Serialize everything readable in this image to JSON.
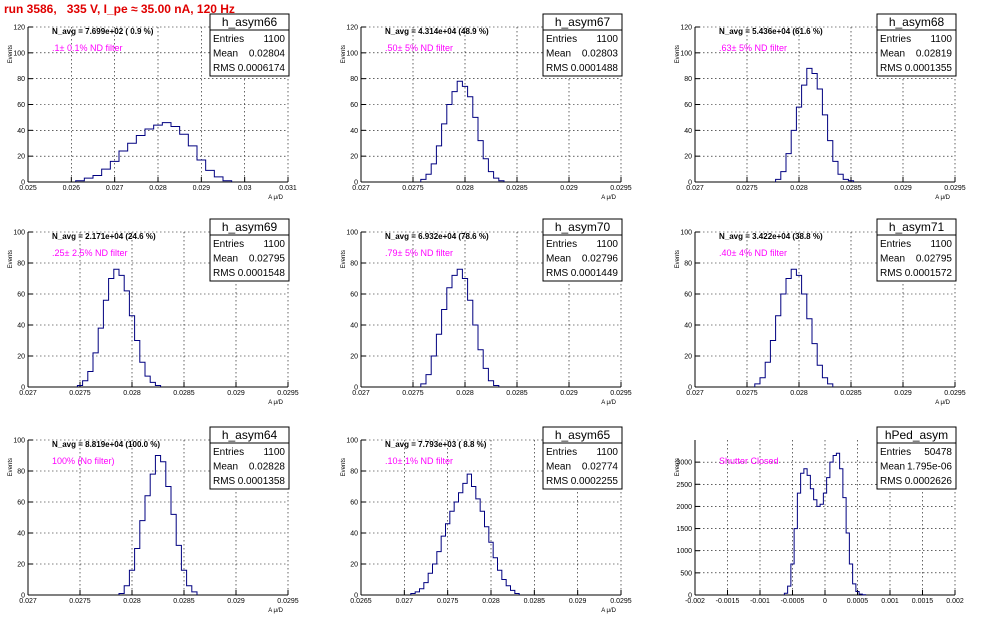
{
  "run_title": "run 3586,   335 V, I_pe ≈ 35.00 nA, 120 Hz",
  "chart_data": [
    {
      "type": "histogram",
      "name": "h_asym66",
      "navg": "N_avg = 7.699e+02 ( 0.9 %)",
      "filter": ".1± 0.1% ND filter",
      "xlim": [
        0.025,
        0.031
      ],
      "ylim": [
        0,
        120
      ],
      "xticks": [
        "0.025",
        "0.026",
        "0.027",
        "0.028",
        "0.029",
        "0.03",
        "0.031"
      ],
      "yticks": [
        "0",
        "20",
        "40",
        "60",
        "80",
        "100",
        "120"
      ],
      "xlabel": "A_{μ/D}",
      "ylabel": "Events",
      "stats": [
        [
          "Entries",
          "1100"
        ],
        [
          "Mean",
          "0.02804"
        ],
        [
          "RMS",
          "0.0006174"
        ]
      ],
      "x": [
        0.0262,
        0.0264,
        0.0266,
        0.0268,
        0.027,
        0.0272,
        0.0274,
        0.0276,
        0.0278,
        0.028,
        0.0282,
        0.0284,
        0.0286,
        0.0288,
        0.029,
        0.0292,
        0.0294,
        0.0296
      ],
      "y": [
        1,
        3,
        5,
        10,
        16,
        24,
        30,
        36,
        41,
        44,
        46,
        43,
        37,
        28,
        17,
        9,
        4,
        1
      ]
    },
    {
      "type": "histogram",
      "name": "h_asym67",
      "navg": "N_avg = 4.314e+04 (48.9 %)",
      "filter": ".50± 5% ND filter",
      "xlim": [
        0.027,
        0.0295
      ],
      "ylim": [
        0,
        120
      ],
      "xticks": [
        "0.027",
        "0.0275",
        "0.028",
        "0.0285",
        "0.029",
        "0.0295"
      ],
      "yticks": [
        "0",
        "20",
        "40",
        "60",
        "80",
        "100",
        "120"
      ],
      "xlabel": "A_{μ/D}",
      "ylabel": "Events",
      "stats": [
        [
          "Entries",
          "1100"
        ],
        [
          "Mean",
          "0.02803"
        ],
        [
          "RMS",
          "0.0001488"
        ]
      ],
      "x": [
        0.0276,
        0.02765,
        0.0277,
        0.02775,
        0.0278,
        0.02785,
        0.0279,
        0.02795,
        0.028,
        0.02805,
        0.0281,
        0.02815,
        0.0282,
        0.02825,
        0.0283,
        0.02835
      ],
      "y": [
        2,
        6,
        14,
        28,
        45,
        60,
        70,
        78,
        74,
        66,
        50,
        32,
        18,
        8,
        3,
        1
      ]
    },
    {
      "type": "histogram",
      "name": "h_asym68",
      "navg": "N_avg = 5.436e+04 (61.6 %)",
      "filter": ".63± 5% ND filter",
      "xlim": [
        0.027,
        0.0295
      ],
      "ylim": [
        0,
        120
      ],
      "xticks": [
        "0.027",
        "0.0275",
        "0.028",
        "0.0285",
        "0.029",
        "0.0295"
      ],
      "yticks": [
        "0",
        "20",
        "40",
        "60",
        "80",
        "100",
        "120"
      ],
      "xlabel": "A_{μ/D}",
      "ylabel": "Events",
      "stats": [
        [
          "Entries",
          "1100"
        ],
        [
          "Mean",
          "0.02819"
        ],
        [
          "RMS",
          "0.0001355"
        ]
      ],
      "x": [
        0.0278,
        0.02785,
        0.0279,
        0.02795,
        0.028,
        0.02805,
        0.0281,
        0.02815,
        0.0282,
        0.02825,
        0.0283,
        0.02835,
        0.0284,
        0.02845,
        0.0285
      ],
      "y": [
        2,
        8,
        22,
        40,
        58,
        75,
        88,
        84,
        72,
        52,
        32,
        16,
        6,
        2,
        1
      ]
    },
    {
      "type": "histogram",
      "name": "h_asym69",
      "navg": "N_avg = 2.171e+04 (24.6 %)",
      "filter": ".25± 2.5% ND filter",
      "xlim": [
        0.027,
        0.0295
      ],
      "ylim": [
        0,
        100
      ],
      "xticks": [
        "0.027",
        "0.0275",
        "0.028",
        "0.0285",
        "0.029",
        "0.0295"
      ],
      "yticks": [
        "0",
        "20",
        "40",
        "60",
        "80",
        "100"
      ],
      "xlabel": "A_{μ/D}",
      "ylabel": "Events",
      "stats": [
        [
          "Entries",
          "1100"
        ],
        [
          "Mean",
          "0.02795"
        ],
        [
          "RMS",
          "0.0001548"
        ]
      ],
      "x": [
        0.0275,
        0.02755,
        0.0276,
        0.02765,
        0.0277,
        0.02775,
        0.0278,
        0.02785,
        0.0279,
        0.02795,
        0.028,
        0.02805,
        0.0281,
        0.02815,
        0.0282,
        0.02825
      ],
      "y": [
        1,
        4,
        10,
        22,
        38,
        56,
        70,
        76,
        72,
        62,
        46,
        30,
        16,
        7,
        3,
        1
      ]
    },
    {
      "type": "histogram",
      "name": "h_asym70",
      "navg": "N_avg = 6.932e+04 (78.6 %)",
      "filter": ".79± 5% ND filter",
      "xlim": [
        0.027,
        0.0295
      ],
      "ylim": [
        0,
        100
      ],
      "xticks": [
        "0.027",
        "0.0275",
        "0.028",
        "0.0285",
        "0.029",
        "0.0295"
      ],
      "yticks": [
        "0",
        "20",
        "40",
        "60",
        "80",
        "100"
      ],
      "xlabel": "A_{μ/D}",
      "ylabel": "Events",
      "stats": [
        [
          "Entries",
          "1100"
        ],
        [
          "Mean",
          "0.02796"
        ],
        [
          "RMS",
          "0.0001449"
        ]
      ],
      "x": [
        0.0276,
        0.02765,
        0.0277,
        0.02775,
        0.0278,
        0.02785,
        0.0279,
        0.02795,
        0.028,
        0.02805,
        0.0281,
        0.02815,
        0.0282,
        0.02825,
        0.0283
      ],
      "y": [
        2,
        8,
        20,
        34,
        50,
        64,
        72,
        76,
        70,
        56,
        40,
        24,
        12,
        4,
        1
      ]
    },
    {
      "type": "histogram",
      "name": "h_asym71",
      "navg": "N_avg = 3.422e+04 (38.8 %)",
      "filter": ".40± 4% ND filter",
      "xlim": [
        0.027,
        0.0295
      ],
      "ylim": [
        0,
        100
      ],
      "xticks": [
        "0.027",
        "0.0275",
        "0.028",
        "0.0285",
        "0.029",
        "0.0295"
      ],
      "yticks": [
        "0",
        "20",
        "40",
        "60",
        "80",
        "100"
      ],
      "xlabel": "A_{μ/D}",
      "ylabel": "Events",
      "stats": [
        [
          "Entries",
          "1100"
        ],
        [
          "Mean",
          "0.02795"
        ],
        [
          "RMS",
          "0.0001572"
        ]
      ],
      "x": [
        0.0276,
        0.02765,
        0.0277,
        0.02775,
        0.0278,
        0.02785,
        0.0279,
        0.02795,
        0.028,
        0.02805,
        0.0281,
        0.02815,
        0.0282,
        0.02825,
        0.0283
      ],
      "y": [
        2,
        6,
        16,
        30,
        46,
        60,
        70,
        76,
        72,
        60,
        44,
        28,
        14,
        6,
        2
      ]
    },
    {
      "type": "histogram",
      "name": "h_asym64",
      "navg": "N_avg = 8.819e+04 (100.0 %)",
      "filter": "100% (No filter)",
      "xlim": [
        0.027,
        0.0295
      ],
      "ylim": [
        0,
        100
      ],
      "xticks": [
        "0.027",
        "0.0275",
        "0.028",
        "0.0285",
        "0.029",
        "0.0295"
      ],
      "yticks": [
        "0",
        "20",
        "40",
        "60",
        "80",
        "100"
      ],
      "xlabel": "A_{μ/D}",
      "ylabel": "Events",
      "stats": [
        [
          "Entries",
          "1100"
        ],
        [
          "Mean",
          "0.02828"
        ],
        [
          "RMS",
          "0.0001358"
        ]
      ],
      "x": [
        0.0279,
        0.02795,
        0.028,
        0.02805,
        0.0281,
        0.02815,
        0.0282,
        0.02825,
        0.0283,
        0.02835,
        0.0284,
        0.02845,
        0.0285,
        0.02855,
        0.0286
      ],
      "y": [
        1,
        6,
        16,
        30,
        48,
        64,
        78,
        90,
        86,
        70,
        52,
        32,
        16,
        6,
        2
      ]
    },
    {
      "type": "histogram",
      "name": "h_asym65",
      "navg": "N_avg = 7.793e+03 ( 8.8 %)",
      "filter": ".10± 1% ND filter",
      "xlim": [
        0.0265,
        0.0295
      ],
      "ylim": [
        0,
        100
      ],
      "xticks": [
        "0.0265",
        "0.027",
        "0.0275",
        "0.028",
        "0.0285",
        "0.029",
        "0.0295"
      ],
      "yticks": [
        "0",
        "20",
        "40",
        "60",
        "80",
        "100"
      ],
      "xlabel": "A_{μ/D}",
      "ylabel": "Events",
      "stats": [
        [
          "Entries",
          "1100"
        ],
        [
          "Mean",
          "0.02774"
        ],
        [
          "RMS",
          "0.0002255"
        ]
      ],
      "x": [
        0.0271,
        0.02715,
        0.0272,
        0.02725,
        0.0273,
        0.02735,
        0.0274,
        0.02745,
        0.0275,
        0.02755,
        0.0276,
        0.02765,
        0.0277,
        0.02775,
        0.0278,
        0.02785,
        0.0279,
        0.02795,
        0.028,
        0.02805,
        0.0281,
        0.02815,
        0.0282,
        0.02825,
        0.0283
      ],
      "y": [
        1,
        2,
        4,
        8,
        14,
        20,
        28,
        38,
        46,
        54,
        60,
        66,
        72,
        78,
        70,
        62,
        54,
        44,
        34,
        24,
        16,
        10,
        6,
        3,
        1
      ]
    },
    {
      "type": "histogram",
      "name": "hPed_asym",
      "navg": "",
      "filter": "Shutter Closed",
      "xlim": [
        -0.002,
        0.002
      ],
      "ylim": [
        0,
        3500
      ],
      "xticks": [
        "-0.002",
        "-0.0015",
        "-0.001",
        "-0.0005",
        "0",
        "0.0005",
        "0.001",
        "0.0015",
        "0.002"
      ],
      "yticks": [
        "0",
        "500",
        "1000",
        "1500",
        "2000",
        "2500",
        "3000"
      ],
      "xlabel": "",
      "ylabel": "Events",
      "stats": [
        [
          "Entries",
          "50478"
        ],
        [
          "Mean",
          "1.795e-06"
        ],
        [
          "RMS",
          "0.0002626"
        ]
      ],
      "x": [
        -0.0006,
        -0.00055,
        -0.0005,
        -0.00045,
        -0.0004,
        -0.00035,
        -0.0003,
        -0.00025,
        -0.0002,
        -0.00015,
        -0.0001,
        -5e-05,
        0.0,
        5e-05,
        0.0001,
        0.00015,
        0.0002,
        0.00025,
        0.0003,
        0.00035,
        0.0004,
        0.00045,
        0.0005,
        0.00055,
        0.0006
      ],
      "y": [
        40,
        200,
        700,
        1500,
        2300,
        2750,
        2850,
        2700,
        2400,
        2150,
        2000,
        2050,
        2300,
        2650,
        3000,
        3150,
        3200,
        2850,
        2200,
        1400,
        700,
        250,
        80,
        20,
        5
      ]
    }
  ]
}
